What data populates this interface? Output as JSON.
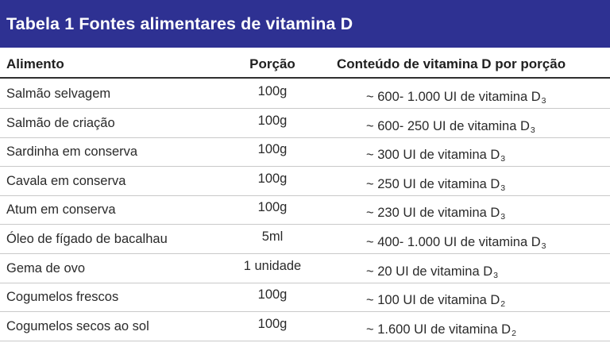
{
  "colors": {
    "title_bar": "#2e3192",
    "title_text": "#ffffff",
    "row_divider": "#c9c9c9",
    "header_divider": "#2f2f2f"
  },
  "title": "Tabela 1 Fontes alimentares de vitamina D",
  "columns": {
    "food": "Alimento",
    "portion": "Porção",
    "content": "Conteúdo de vitamina D por porção"
  },
  "rows": [
    {
      "food": "Salmão selvagem",
      "portion": "100g",
      "content": "~ 600- 1.000 UI de vitamina D",
      "sub": "3"
    },
    {
      "food": "Salmão de criação",
      "portion": "100g",
      "content": "~ 600- 250 UI de vitamina D",
      "sub": "3"
    },
    {
      "food": "Sardinha em conserva",
      "portion": "100g",
      "content": "~ 300 UI de vitamina D",
      "sub": "3"
    },
    {
      "food": "Cavala em conserva",
      "portion": "100g",
      "content": "~ 250 UI de vitamina D",
      "sub": "3"
    },
    {
      "food": "Atum em conserva",
      "portion": "100g",
      "content": "~ 230 UI de vitamina D",
      "sub": "3"
    },
    {
      "food": "Óleo de fígado de bacalhau",
      "portion": "5ml",
      "content": "~ 400- 1.000 UI de vitamina D",
      "sub": "3"
    },
    {
      "food": "Gema de ovo",
      "portion": "1 unidade",
      "content": "~ 20 UI de vitamina D",
      "sub": "3"
    },
    {
      "food": "Cogumelos frescos",
      "portion": "100g",
      "content": "~ 100 UI de vitamina D",
      "sub": "2"
    },
    {
      "food": "Cogumelos secos ao sol",
      "portion": "100g",
      "content": "~ 1.600 UI de vitamina D",
      "sub": "2"
    }
  ]
}
